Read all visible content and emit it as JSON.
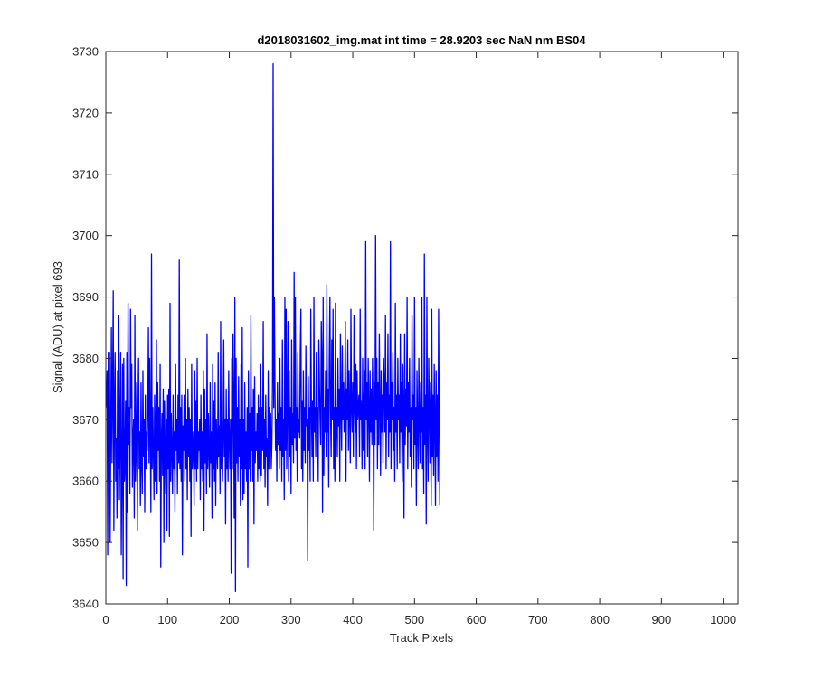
{
  "chart_data": {
    "type": "line",
    "title": "d2018031602_img.mat int time = 28.9203 sec  NaN nm BS04",
    "xlabel": "Track Pixels",
    "ylabel": "Signal (ADU) at pixel 693",
    "xlim": [
      0,
      1024
    ],
    "ylim": [
      3640,
      3730
    ],
    "xticks": [
      0,
      100,
      200,
      300,
      400,
      500,
      600,
      700,
      800,
      900,
      1000
    ],
    "yticks": [
      3640,
      3650,
      3660,
      3670,
      3680,
      3690,
      3700,
      3710,
      3720,
      3730
    ],
    "grid": false,
    "line_color": "#0000ff",
    "x_start": 1,
    "series": [
      {
        "values": [
          3672,
          3678,
          3648,
          3681,
          3660,
          3681,
          3650,
          3668,
          3685,
          3663,
          3675,
          3691,
          3652,
          3672,
          3681,
          3660,
          3667,
          3654,
          3678,
          3662,
          3687,
          3657,
          3668,
          3681,
          3648,
          3662,
          3679,
          3644,
          3680,
          3660,
          3663,
          3673,
          3643,
          3681,
          3655,
          3689,
          3666,
          3672,
          3658,
          3688,
          3672,
          3679,
          3659,
          3667,
          3670,
          3654,
          3687,
          3660,
          3665,
          3676,
          3652,
          3671,
          3680,
          3662,
          3668,
          3656,
          3676,
          3663,
          3658,
          3678,
          3664,
          3670,
          3655,
          3674,
          3662,
          3668,
          3665,
          3672,
          3685,
          3663,
          3680,
          3667,
          3655,
          3697,
          3662,
          3672,
          3665,
          3657,
          3674,
          3660,
          3669,
          3683,
          3658,
          3676,
          3665,
          3672,
          3660,
          3679,
          3646,
          3667,
          3671,
          3661,
          3675,
          3650,
          3673,
          3665,
          3658,
          3670,
          3652,
          3674,
          3662,
          3675,
          3651,
          3689,
          3660,
          3671,
          3665,
          3658,
          3674,
          3662,
          3668,
          3655,
          3679,
          3665,
          3670,
          3658,
          3674,
          3663,
          3696,
          3662,
          3672,
          3660,
          3674,
          3648,
          3669,
          3665,
          3674,
          3660,
          3680,
          3662,
          3670,
          3657,
          3675,
          3664,
          3672,
          3660,
          3670,
          3651,
          3679,
          3662,
          3665,
          3668,
          3656,
          3678,
          3662,
          3673,
          3660,
          3680,
          3662,
          3668,
          3665,
          3670,
          3657,
          3674,
          3662,
          3668,
          3660,
          3678,
          3652,
          3675,
          3663,
          3670,
          3658,
          3684,
          3662,
          3671,
          3665,
          3659,
          3676,
          3663,
          3668,
          3654,
          3679,
          3662,
          3673,
          3660,
          3676,
          3656,
          3670,
          3665,
          3662,
          3681,
          3664,
          3669,
          3658,
          3686,
          3662,
          3671,
          3660,
          3667,
          3683,
          3664,
          3670,
          3653,
          3675,
          3662,
          3670,
          3660,
          3678,
          3666,
          3662,
          3670,
          3645,
          3680,
          3662,
          3684,
          3672,
          3654,
          3690,
          3642,
          3680,
          3663,
          3672,
          3660,
          3677,
          3664,
          3670,
          3656,
          3679,
          3662,
          3685,
          3657,
          3670,
          3658,
          3676,
          3662,
          3668,
          3660,
          3672,
          3646,
          3678,
          3662,
          3671,
          3660,
          3687,
          3665,
          3672,
          3660,
          3675,
          3653,
          3677,
          3663,
          3668,
          3665,
          3671,
          3660,
          3674,
          3662,
          3672,
          3660,
          3679,
          3661,
          3672,
          3665,
          3686,
          3662,
          3670,
          3659,
          3674,
          3664,
          3667,
          3656,
          3678,
          3662,
          3672,
          3665,
          3671,
          3662,
          3666,
          3676,
          3728,
          3672,
          3690,
          3675,
          3665,
          3670,
          3660,
          3676,
          3666,
          3671,
          3662,
          3680,
          3665,
          3672,
          3660,
          3683,
          3664,
          3670,
          3657,
          3690,
          3665,
          3688,
          3662,
          3672,
          3686,
          3660,
          3678,
          3664,
          3672,
          3658,
          3683,
          3666,
          3671,
          3663,
          3694,
          3667,
          3690,
          3665,
          3672,
          3660,
          3681,
          3668,
          3670,
          3667,
          3681,
          3688,
          3662,
          3673,
          3660,
          3678,
          3665,
          3672,
          3663,
          3682,
          3669,
          3670,
          3647,
          3677,
          3665,
          3672,
          3660,
          3688,
          3672,
          3664,
          3673,
          3660,
          3690,
          3668,
          3672,
          3664,
          3681,
          3670,
          3672,
          3660,
          3683,
          3676,
          3670,
          3666,
          3686,
          3680,
          3655,
          3690,
          3661,
          3672,
          3668,
          3678,
          3664,
          3692,
          3668,
          3675,
          3659,
          3680,
          3690,
          3671,
          3664,
          3683,
          3670,
          3688,
          3662,
          3672,
          3660,
          3689,
          3667,
          3672,
          3664,
          3680,
          3669,
          3675,
          3660,
          3684,
          3672,
          3665,
          3682,
          3670,
          3676,
          3668,
          3672,
          3686,
          3660,
          3675,
          3670,
          3683,
          3665,
          3678,
          3671,
          3663,
          3688,
          3672,
          3668,
          3676,
          3664,
          3687,
          3672,
          3668,
          3679,
          3662,
          3678,
          3670,
          3672,
          3674,
          3664,
          3688,
          3670,
          3673,
          3662,
          3680,
          3665,
          3672,
          3678,
          3662,
          3699,
          3670,
          3676,
          3664,
          3680,
          3672,
          3660,
          3678,
          3668,
          3675,
          3666,
          3680,
          3670,
          3652,
          3676,
          3666,
          3700,
          3670,
          3680,
          3662,
          3676,
          3666,
          3684,
          3672,
          3661,
          3678,
          3668,
          3674,
          3663,
          3680,
          3675,
          3668,
          3687,
          3662,
          3676,
          3670,
          3684,
          3664,
          3674,
          3668,
          3699,
          3662,
          3676,
          3670,
          3681,
          3665,
          3672,
          3660,
          3689,
          3668,
          3674,
          3662,
          3680,
          3670,
          3674,
          3663,
          3684,
          3668,
          3676,
          3660,
          3679,
          3672,
          3654,
          3684,
          3666,
          3675,
          3669,
          3690,
          3662,
          3676,
          3668,
          3680,
          3664,
          3672,
          3659,
          3687,
          3670,
          3674,
          3662,
          3690,
          3666,
          3672,
          3656,
          3678,
          3669,
          3662,
          3680,
          3670,
          3663,
          3676,
          3668,
          3690,
          3662,
          3672,
          3658,
          3697,
          3666,
          3674,
          3653,
          3690,
          3668,
          3660,
          3680,
          3672,
          3663,
          3676,
          3656,
          3688,
          3664,
          3674,
          3661,
          3679,
          3670,
          3656,
          3678,
          3664,
          3674,
          3660,
          3688,
          3670,
          3656
        ]
      }
    ]
  }
}
